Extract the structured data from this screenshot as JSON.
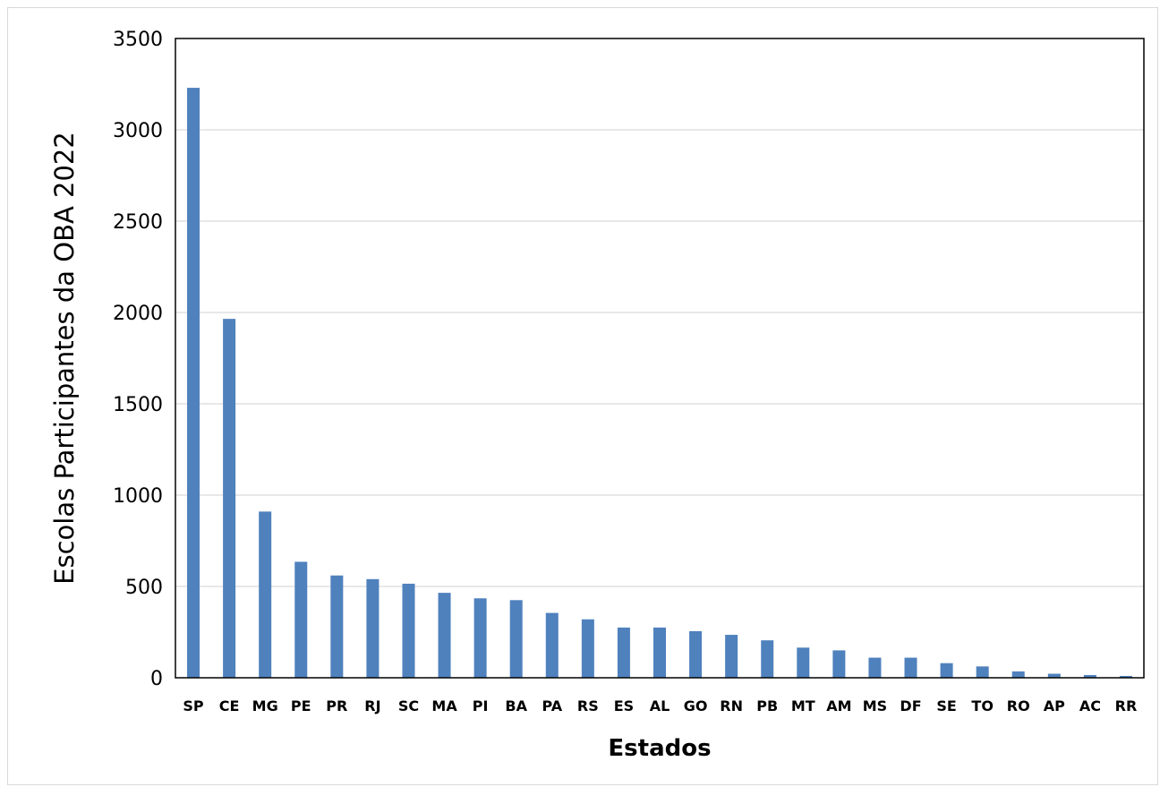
{
  "chart_data": {
    "type": "bar",
    "title": "",
    "xlabel": "Estados",
    "ylabel": "Escolas Participantes da OBA 2022",
    "ylim": [
      0,
      3500
    ],
    "yticks": [
      0,
      500,
      1000,
      1500,
      2000,
      2500,
      3000,
      3500
    ],
    "grid": true,
    "legend": "none",
    "bar_color": "#4f81bd",
    "categories": [
      "SP",
      "CE",
      "MG",
      "PE",
      "PR",
      "RJ",
      "SC",
      "MA",
      "PI",
      "BA",
      "PA",
      "RS",
      "ES",
      "AL",
      "GO",
      "RN",
      "PB",
      "MT",
      "AM",
      "MS",
      "DF",
      "SE",
      "TO",
      "RO",
      "AP",
      "AC",
      "RR"
    ],
    "values": [
      3230,
      1965,
      910,
      635,
      560,
      540,
      515,
      465,
      435,
      425,
      355,
      320,
      275,
      275,
      255,
      235,
      205,
      165,
      150,
      110,
      110,
      80,
      62,
      35,
      22,
      15,
      10
    ]
  }
}
